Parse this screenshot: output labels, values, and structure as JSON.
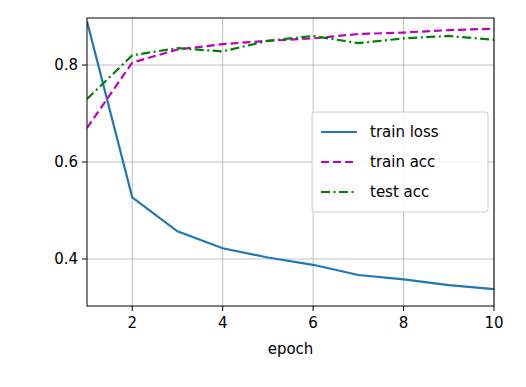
{
  "chart_data": {
    "type": "line",
    "x_label": "epoch",
    "x": [
      1,
      2,
      3,
      4,
      5,
      6,
      7,
      8,
      9,
      10
    ],
    "series": [
      {
        "name": "train loss",
        "color": "#1f77b4",
        "line_style": "solid",
        "values": [
          0.89,
          0.527,
          0.457,
          0.422,
          0.403,
          0.388,
          0.367,
          0.358,
          0.346,
          0.338
        ]
      },
      {
        "name": "train acc",
        "color": "#bf00bf",
        "line_style": "dashed",
        "values": [
          0.67,
          0.805,
          0.832,
          0.843,
          0.85,
          0.855,
          0.864,
          0.867,
          0.872,
          0.875
        ]
      },
      {
        "name": "test acc",
        "color": "#008000",
        "line_style": "dashdot",
        "values": [
          0.73,
          0.82,
          0.835,
          0.828,
          0.85,
          0.86,
          0.845,
          0.855,
          0.86,
          0.852
        ]
      }
    ],
    "xlim": [
      1,
      10
    ],
    "xticks": [
      2,
      4,
      6,
      8,
      10
    ],
    "ylim": [
      0.303,
      0.897
    ],
    "yticks": [
      0.4,
      0.6,
      0.8
    ],
    "grid": true,
    "legend": "right"
  }
}
